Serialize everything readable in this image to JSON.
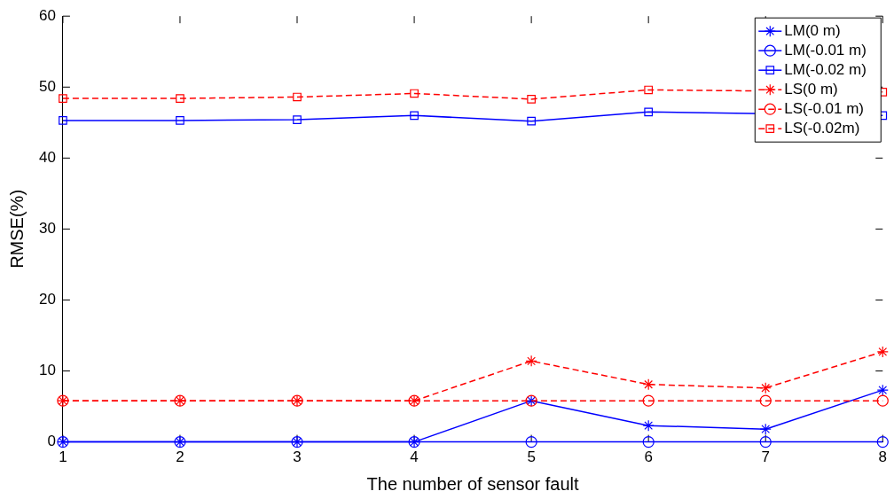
{
  "chart_data": {
    "type": "line",
    "xlabel": "The number of sensor fault",
    "ylabel": "RMSE(%)",
    "x": [
      1,
      2,
      3,
      4,
      5,
      6,
      7,
      8
    ],
    "xlim": [
      1,
      8
    ],
    "xticks": [
      1,
      2,
      3,
      4,
      5,
      6,
      7,
      8
    ],
    "ylim": [
      0,
      60
    ],
    "yticks": [
      0,
      10,
      20,
      30,
      40,
      50,
      60
    ],
    "grid": false,
    "legend": "top right",
    "series": [
      {
        "name": "LM(0 m)",
        "color": "#0000ff",
        "marker": "cross",
        "line_style": "solid",
        "values": [
          0,
          0,
          0,
          0,
          5.8,
          2.3,
          1.8,
          7.3
        ]
      },
      {
        "name": "LM(-0.01 m)",
        "color": "#0000ff",
        "marker": "circle",
        "line_style": "solid",
        "values": [
          0,
          0,
          0,
          0,
          0,
          0,
          0,
          0
        ]
      },
      {
        "name": "LM(-0.02 m)",
        "color": "#0000ff",
        "marker": "square",
        "line_style": "solid",
        "values": [
          45.3,
          45.3,
          45.4,
          46.0,
          45.2,
          46.5,
          null,
          46.0
        ]
      },
      {
        "name": "LS(0 m)",
        "color": "#ff0000",
        "marker": "cross",
        "line_style": "dashed",
        "values": [
          5.8,
          5.8,
          5.8,
          5.8,
          11.4,
          8.1,
          7.6,
          12.7
        ]
      },
      {
        "name": "LS(-0.01 m)",
        "color": "#ff0000",
        "marker": "circle",
        "line_style": "dashed",
        "values": [
          5.8,
          5.8,
          5.8,
          5.8,
          5.8,
          5.8,
          5.8,
          5.8
        ]
      },
      {
        "name": "LS(-0.02m)",
        "color": "#ff0000",
        "marker": "square",
        "line_style": "dashed",
        "values": [
          48.4,
          48.4,
          48.6,
          49.1,
          48.3,
          49.6,
          null,
          49.3
        ]
      }
    ]
  }
}
